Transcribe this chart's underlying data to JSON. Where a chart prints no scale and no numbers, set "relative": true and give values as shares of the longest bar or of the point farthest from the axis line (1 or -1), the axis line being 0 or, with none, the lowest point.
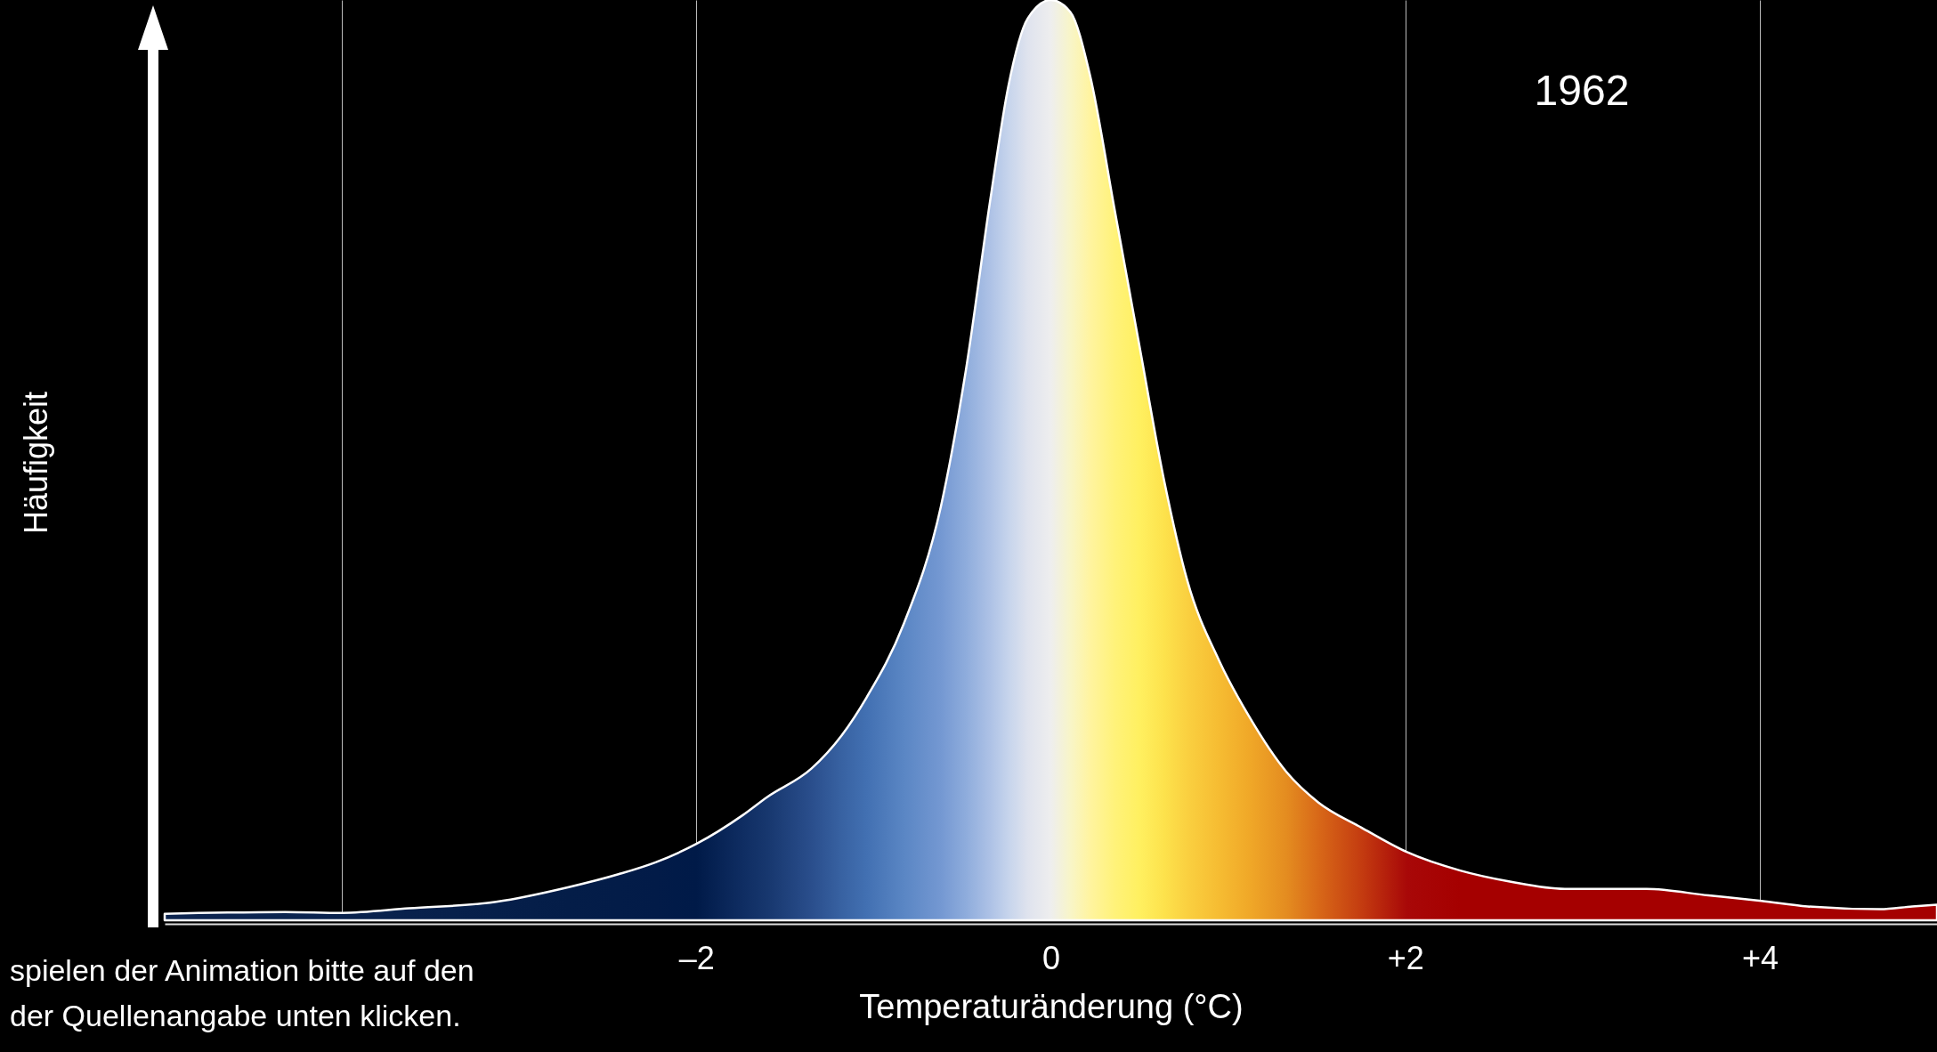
{
  "chart_data": {
    "type": "area",
    "relative": true,
    "xlabel": "Temperaturänderung (°C)",
    "ylabel": "Häufigkeit",
    "annotations": [
      "1962",
      "spielen der Animation bitte auf den\nder Quellenangabe unten klicken."
    ],
    "x": [
      -5,
      -4.32,
      -4,
      -3.62,
      -3.13,
      -2.72,
      -2.44,
      -2.23,
      -2,
      -1.74,
      -1.6,
      -1.35,
      -1.18,
      -1.04,
      -0.83,
      -0.62,
      -0.48,
      -0.34,
      -0.24,
      -0.13,
      0,
      0.11,
      0.22,
      0.36,
      0.5,
      0.64,
      0.77,
      0.95,
      1.12,
      1.33,
      1.51,
      1.75,
      2.01,
      2.31,
      2.59,
      2.9,
      3.36,
      3.71,
      4.01,
      4.27,
      4.68,
      4.86,
      5
    ],
    "series": [
      {
        "color": "#ffffff",
        "colors": [
          "#0d2550",
          "#0b2450",
          "#0a234e",
          "#08214c",
          "#061f4a",
          "#041d48",
          "#031c48",
          "#021b48",
          "#001a48",
          "#0f2d62",
          "#17376e",
          "#2a4e8c",
          "#3862a2",
          "#4270b2",
          "#5a86c4",
          "#7498d2",
          "#8eacdc",
          "#aec2e6",
          "#c6d4ec",
          "#dfe3ee",
          "#eeeeee",
          "#f8f5c8",
          "#fff4a0",
          "#fff27a",
          "#fff060",
          "#fde24c",
          "#fad040",
          "#f6bc32",
          "#f0a828",
          "#e48c20",
          "#d86818",
          "#c43c10",
          "#a80808",
          "#a50000",
          "#a50000",
          "#a50000",
          "#a50000",
          "#a50000",
          "#a50000",
          "#a50000",
          "#a50000",
          "#a50000",
          "#a50000"
        ],
        "values": [
          0.007,
          0.009,
          0.008,
          0.013,
          0.02,
          0.036,
          0.05,
          0.063,
          0.083,
          0.114,
          0.134,
          0.165,
          0.201,
          0.242,
          0.322,
          0.45,
          0.597,
          0.785,
          0.906,
          0.98,
          1,
          0.987,
          0.919,
          0.772,
          0.624,
          0.477,
          0.369,
          0.282,
          0.221,
          0.161,
          0.128,
          0.101,
          0.074,
          0.054,
          0.042,
          0.034,
          0.034,
          0.027,
          0.021,
          0.015,
          0.012,
          0.015,
          0.017
        ]
      }
    ],
    "xlim": [
      -5,
      5
    ],
    "xticks": [
      {
        "value": -4,
        "label": null
      },
      {
        "value": -2,
        "label": "–2"
      },
      0,
      {
        "value": 2,
        "label": "+2"
      },
      {
        "value": 4,
        "label": "+4"
      }
    ],
    "grid": "x"
  }
}
